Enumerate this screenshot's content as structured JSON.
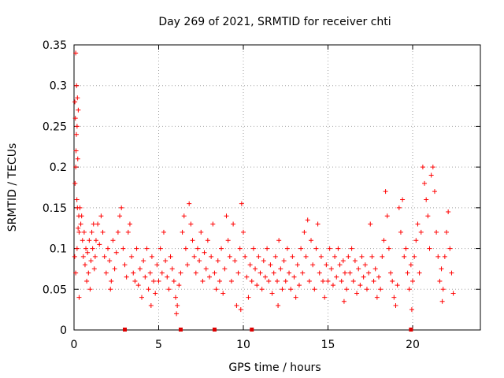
{
  "chart_data": {
    "type": "scatter",
    "title": "Day 269 of 2021, SRMTID for receiver chti",
    "xlabel": "GPS time / hours",
    "ylabel": "SRMTID / TECUs",
    "xlim": [
      0,
      24
    ],
    "ylim": [
      0,
      0.35
    ],
    "grid": true,
    "x_ticks": [
      0,
      5,
      10,
      15,
      20
    ],
    "x_tick_labels": [
      "0",
      "5",
      "10",
      "15",
      "20"
    ],
    "y_ticks": [
      0,
      0.05,
      0.1,
      0.15,
      0.2,
      0.25,
      0.3,
      0.35
    ],
    "y_tick_labels": [
      "0",
      "0.05",
      "0.1",
      "0.15",
      "0.2",
      "0.25",
      "0.3",
      "0.35"
    ],
    "marker": "plus",
    "series_color": "#ff0000",
    "zero_markers_color": "#dd0000",
    "zero_markers_x": [
      3.0,
      6.3,
      8.3,
      10.5,
      19.9
    ],
    "series": [
      {
        "name": "SRMTID",
        "points": [
          [
            0.05,
            0.28
          ],
          [
            0.08,
            0.26
          ],
          [
            0.1,
            0.34
          ],
          [
            0.12,
            0.22
          ],
          [
            0.15,
            0.3
          ],
          [
            0.18,
            0.25
          ],
          [
            0.2,
            0.285
          ],
          [
            0.22,
            0.21
          ],
          [
            0.25,
            0.27
          ],
          [
            0.06,
            0.18
          ],
          [
            0.1,
            0.2
          ],
          [
            0.14,
            0.24
          ],
          [
            0.17,
            0.16
          ],
          [
            0.2,
            0.15
          ],
          [
            0.24,
            0.125
          ],
          [
            0.28,
            0.14
          ],
          [
            0.3,
            0.12
          ],
          [
            0.04,
            0.09
          ],
          [
            0.1,
            0.07
          ],
          [
            0.18,
            0.1
          ],
          [
            0.35,
            0.15
          ],
          [
            0.4,
            0.13
          ],
          [
            0.45,
            0.14
          ],
          [
            0.5,
            0.11
          ],
          [
            0.55,
            0.09
          ],
          [
            0.6,
            0.12
          ],
          [
            0.65,
            0.08
          ],
          [
            0.7,
            0.1
          ],
          [
            0.75,
            0.06
          ],
          [
            0.8,
            0.095
          ],
          [
            0.85,
            0.07
          ],
          [
            0.9,
            0.11
          ],
          [
            0.95,
            0.05
          ],
          [
            1.0,
            0.085
          ],
          [
            1.05,
            0.12
          ],
          [
            1.1,
            0.1
          ],
          [
            1.15,
            0.13
          ],
          [
            1.2,
            0.075
          ],
          [
            1.25,
            0.09
          ],
          [
            1.3,
            0.11
          ],
          [
            1.4,
            0.13
          ],
          [
            1.5,
            0.105
          ],
          [
            1.6,
            0.14
          ],
          [
            1.7,
            0.12
          ],
          [
            1.8,
            0.09
          ],
          [
            1.9,
            0.07
          ],
          [
            2.0,
            0.1
          ],
          [
            2.1,
            0.085
          ],
          [
            2.2,
            0.06
          ],
          [
            2.3,
            0.11
          ],
          [
            2.4,
            0.075
          ],
          [
            2.5,
            0.095
          ],
          [
            2.6,
            0.12
          ],
          [
            2.7,
            0.14
          ],
          [
            2.8,
            0.15
          ],
          [
            2.9,
            0.1
          ],
          [
            3.0,
            0.08
          ],
          [
            3.1,
            0.065
          ],
          [
            3.2,
            0.12
          ],
          [
            3.3,
            0.13
          ],
          [
            3.4,
            0.09
          ],
          [
            3.5,
            0.07
          ],
          [
            3.6,
            0.06
          ],
          [
            3.7,
            0.1
          ],
          [
            3.8,
            0.055
          ],
          [
            3.9,
            0.075
          ],
          [
            4.0,
            0.04
          ],
          [
            4.1,
            0.085
          ],
          [
            4.2,
            0.065
          ],
          [
            4.3,
            0.1
          ],
          [
            4.4,
            0.05
          ],
          [
            4.5,
            0.07
          ],
          [
            4.6,
            0.09
          ],
          [
            4.7,
            0.06
          ],
          [
            4.8,
            0.045
          ],
          [
            4.9,
            0.08
          ],
          [
            5.0,
            0.06
          ],
          [
            5.1,
            0.1
          ],
          [
            5.2,
            0.07
          ],
          [
            5.3,
            0.12
          ],
          [
            5.4,
            0.085
          ],
          [
            5.5,
            0.065
          ],
          [
            5.6,
            0.05
          ],
          [
            5.7,
            0.09
          ],
          [
            5.8,
            0.075
          ],
          [
            5.9,
            0.06
          ],
          [
            6.0,
            0.04
          ],
          [
            6.1,
            0.03
          ],
          [
            6.2,
            0.055
          ],
          [
            6.3,
            0.07
          ],
          [
            6.4,
            0.12
          ],
          [
            6.5,
            0.14
          ],
          [
            6.6,
            0.1
          ],
          [
            6.7,
            0.08
          ],
          [
            6.8,
            0.155
          ],
          [
            6.9,
            0.13
          ],
          [
            7.0,
            0.11
          ],
          [
            7.1,
            0.09
          ],
          [
            7.2,
            0.07
          ],
          [
            7.3,
            0.1
          ],
          [
            7.4,
            0.085
          ],
          [
            7.5,
            0.12
          ],
          [
            7.6,
            0.06
          ],
          [
            7.7,
            0.095
          ],
          [
            7.8,
            0.075
          ],
          [
            7.9,
            0.11
          ],
          [
            8.0,
            0.065
          ],
          [
            8.1,
            0.09
          ],
          [
            8.2,
            0.13
          ],
          [
            8.3,
            0.07
          ],
          [
            8.4,
            0.05
          ],
          [
            8.5,
            0.085
          ],
          [
            8.6,
            0.06
          ],
          [
            8.7,
            0.1
          ],
          [
            8.8,
            0.045
          ],
          [
            8.9,
            0.075
          ],
          [
            9.0,
            0.14
          ],
          [
            9.1,
            0.11
          ],
          [
            9.2,
            0.09
          ],
          [
            9.3,
            0.06
          ],
          [
            9.4,
            0.13
          ],
          [
            9.5,
            0.085
          ],
          [
            9.6,
            0.03
          ],
          [
            9.7,
            0.07
          ],
          [
            9.8,
            0.1
          ],
          [
            9.9,
            0.155
          ],
          [
            10.0,
            0.12
          ],
          [
            10.1,
            0.09
          ],
          [
            10.2,
            0.065
          ],
          [
            10.3,
            0.04
          ],
          [
            10.4,
            0.08
          ],
          [
            10.5,
            0.06
          ],
          [
            10.6,
            0.1
          ],
          [
            10.7,
            0.075
          ],
          [
            10.8,
            0.055
          ],
          [
            10.9,
            0.09
          ],
          [
            11.0,
            0.07
          ],
          [
            11.1,
            0.05
          ],
          [
            11.2,
            0.085
          ],
          [
            11.3,
            0.065
          ],
          [
            11.4,
            0.1
          ],
          [
            11.5,
            0.06
          ],
          [
            11.6,
            0.08
          ],
          [
            11.7,
            0.045
          ],
          [
            11.8,
            0.07
          ],
          [
            11.9,
            0.09
          ],
          [
            12.0,
            0.06
          ],
          [
            12.1,
            0.11
          ],
          [
            12.2,
            0.075
          ],
          [
            12.3,
            0.05
          ],
          [
            12.4,
            0.085
          ],
          [
            12.5,
            0.06
          ],
          [
            12.6,
            0.1
          ],
          [
            12.7,
            0.07
          ],
          [
            12.8,
            0.05
          ],
          [
            12.9,
            0.09
          ],
          [
            13.0,
            0.065
          ],
          [
            13.1,
            0.04
          ],
          [
            13.2,
            0.08
          ],
          [
            13.3,
            0.055
          ],
          [
            13.4,
            0.1
          ],
          [
            13.5,
            0.07
          ],
          [
            13.6,
            0.12
          ],
          [
            13.7,
            0.09
          ],
          [
            13.8,
            0.135
          ],
          [
            13.9,
            0.06
          ],
          [
            14.0,
            0.11
          ],
          [
            14.1,
            0.08
          ],
          [
            14.2,
            0.05
          ],
          [
            14.3,
            0.1
          ],
          [
            14.4,
            0.13
          ],
          [
            14.5,
            0.07
          ],
          [
            14.6,
            0.09
          ],
          [
            14.7,
            0.06
          ],
          [
            14.8,
            0.04
          ],
          [
            14.9,
            0.08
          ],
          [
            15.0,
            0.06
          ],
          [
            15.1,
            0.1
          ],
          [
            15.2,
            0.075
          ],
          [
            15.3,
            0.055
          ],
          [
            15.4,
            0.09
          ],
          [
            15.5,
            0.065
          ],
          [
            15.6,
            0.1
          ],
          [
            15.7,
            0.08
          ],
          [
            15.8,
            0.06
          ],
          [
            15.9,
            0.085
          ],
          [
            16.0,
            0.07
          ],
          [
            16.1,
            0.05
          ],
          [
            16.2,
            0.09
          ],
          [
            16.3,
            0.07
          ],
          [
            16.4,
            0.1
          ],
          [
            16.5,
            0.06
          ],
          [
            16.6,
            0.085
          ],
          [
            16.7,
            0.045
          ],
          [
            16.8,
            0.075
          ],
          [
            16.9,
            0.055
          ],
          [
            17.0,
            0.09
          ],
          [
            17.1,
            0.065
          ],
          [
            17.2,
            0.08
          ],
          [
            17.3,
            0.05
          ],
          [
            17.4,
            0.07
          ],
          [
            17.5,
            0.13
          ],
          [
            17.6,
            0.09
          ],
          [
            17.7,
            0.06
          ],
          [
            17.8,
            0.075
          ],
          [
            17.9,
            0.04
          ],
          [
            18.0,
            0.065
          ],
          [
            18.1,
            0.05
          ],
          [
            18.2,
            0.09
          ],
          [
            18.3,
            0.11
          ],
          [
            18.4,
            0.17
          ],
          [
            18.5,
            0.14
          ],
          [
            18.6,
            0.1
          ],
          [
            18.7,
            0.07
          ],
          [
            18.8,
            0.06
          ],
          [
            18.9,
            0.04
          ],
          [
            19.0,
            0.03
          ],
          [
            19.1,
            0.055
          ],
          [
            19.2,
            0.15
          ],
          [
            19.3,
            0.12
          ],
          [
            19.4,
            0.16
          ],
          [
            19.5,
            0.09
          ],
          [
            19.6,
            0.1
          ],
          [
            19.7,
            0.07
          ],
          [
            19.8,
            0.05
          ],
          [
            19.9,
            0.08
          ],
          [
            20.0,
            0.06
          ],
          [
            20.1,
            0.09
          ],
          [
            20.2,
            0.11
          ],
          [
            20.3,
            0.13
          ],
          [
            20.4,
            0.07
          ],
          [
            20.5,
            0.12
          ],
          [
            20.6,
            0.2
          ],
          [
            20.7,
            0.18
          ],
          [
            20.8,
            0.16
          ],
          [
            20.9,
            0.14
          ],
          [
            21.0,
            0.1
          ],
          [
            21.1,
            0.19
          ],
          [
            21.2,
            0.2
          ],
          [
            21.3,
            0.17
          ],
          [
            21.4,
            0.12
          ],
          [
            21.5,
            0.09
          ],
          [
            21.6,
            0.06
          ],
          [
            21.7,
            0.075
          ],
          [
            21.8,
            0.05
          ],
          [
            21.9,
            0.09
          ],
          [
            22.0,
            0.12
          ],
          [
            22.1,
            0.145
          ],
          [
            22.2,
            0.1
          ],
          [
            22.3,
            0.07
          ],
          [
            22.4,
            0.045
          ],
          [
            21.75,
            0.035
          ],
          [
            19.95,
            0.025
          ],
          [
            15.95,
            0.035
          ],
          [
            12.05,
            0.03
          ],
          [
            9.85,
            0.025
          ],
          [
            6.05,
            0.02
          ],
          [
            4.55,
            0.03
          ],
          [
            2.15,
            0.05
          ],
          [
            0.3,
            0.04
          ]
        ]
      }
    ]
  }
}
